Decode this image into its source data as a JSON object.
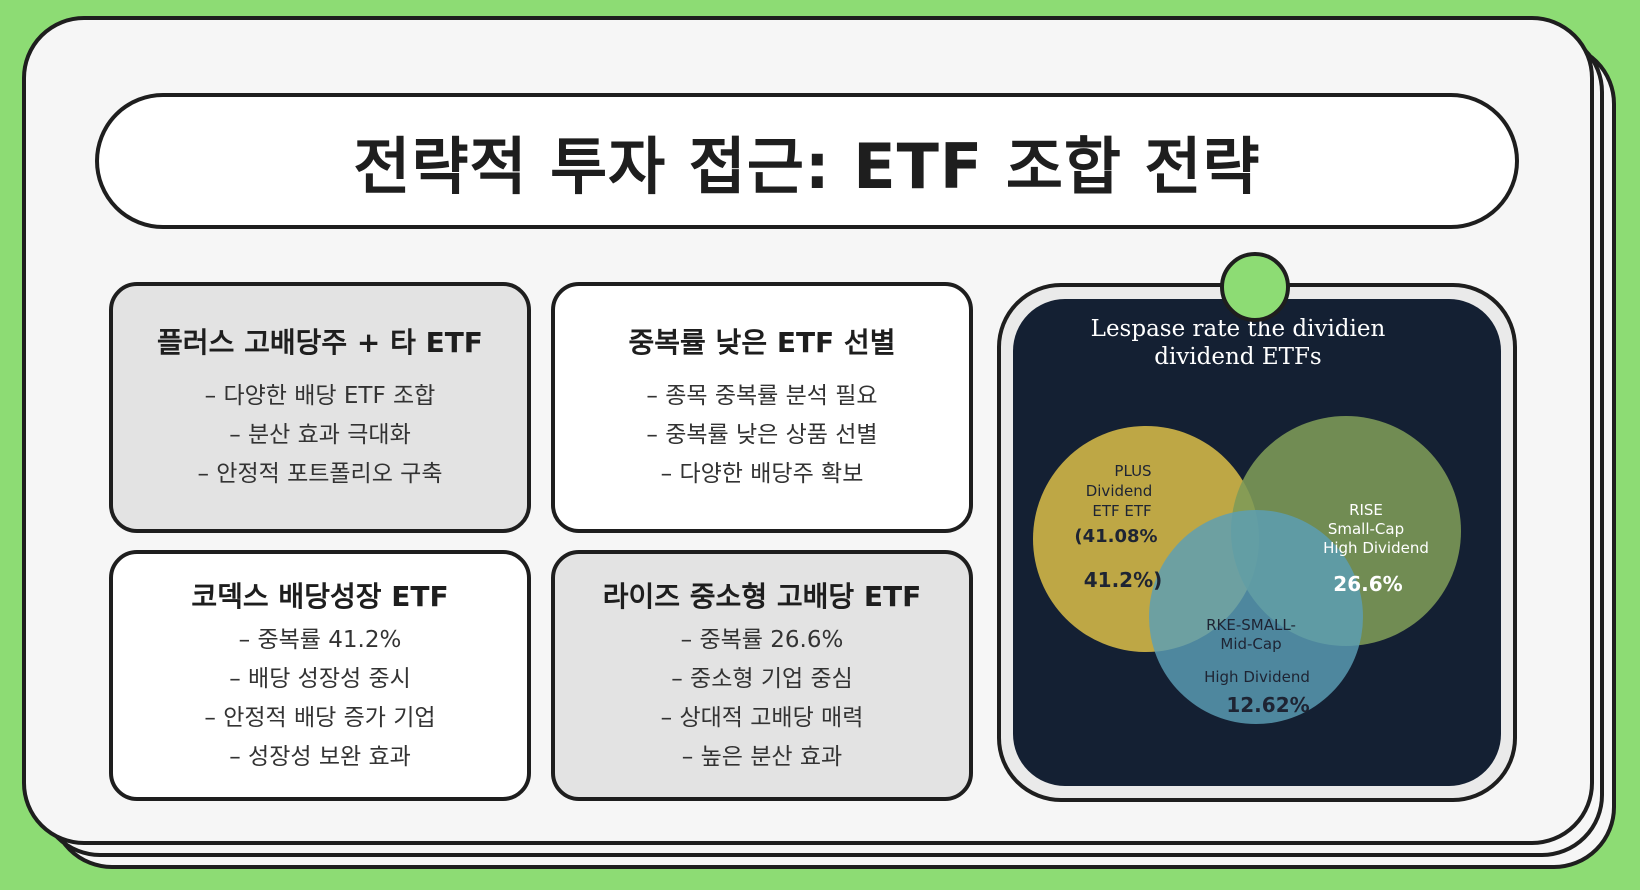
{
  "title": "전략적 투자 접근: ETF 조합 전략",
  "cards": [
    {
      "title": "플러스 고배당주 + 타 ETF",
      "items": [
        "– 다양한 배당 ETF 조합",
        "– 분산 효과 극대화",
        "– 안정적 포트폴리오 구축"
      ]
    },
    {
      "title": "중복률 낮은 ETF 선별",
      "items": [
        "– 종목 중복률 분석 필요",
        "– 중복률 낮은 상품 선별",
        "– 다양한 배당주 확보"
      ]
    },
    {
      "title": "코덱스 배당성장 ETF",
      "items": [
        "– 중복률 41.2%",
        "– 배당 성장성 중시",
        "– 안정적 배당 증가 기업",
        "– 성장성 보완 효과"
      ]
    },
    {
      "title": "라이즈 중소형 고배당 ETF",
      "items": [
        "– 중복률 26.6%",
        "– 중소형 기업 중심",
        "– 상대적 고배당 매력",
        "– 높은 분산 효과"
      ]
    }
  ],
  "venn": {
    "title_line1": "Lespase rate the dividien",
    "title_line2": "dividend ETFs",
    "circles": [
      {
        "lines": [
          "PLUS",
          "Dividend",
          "ETF ETF"
        ],
        "value1": "(41.08%",
        "value2": "41.2%)",
        "color": "#cdb347"
      },
      {
        "lines": [
          "RISE",
          "Small-Cap",
          "High Dividend"
        ],
        "value": "26.6%",
        "color": "#7e9b58"
      },
      {
        "lines": [
          "RKE-SMALL-",
          "Mid-Cap"
        ],
        "sub": "High Dividend",
        "value": "12.62%",
        "color": "#5b9fb6"
      }
    ]
  },
  "colors": {
    "background": "#8ddc74",
    "panel": "#142033",
    "card_gray": "#e3e3e3",
    "outline": "#1e1e1e"
  }
}
